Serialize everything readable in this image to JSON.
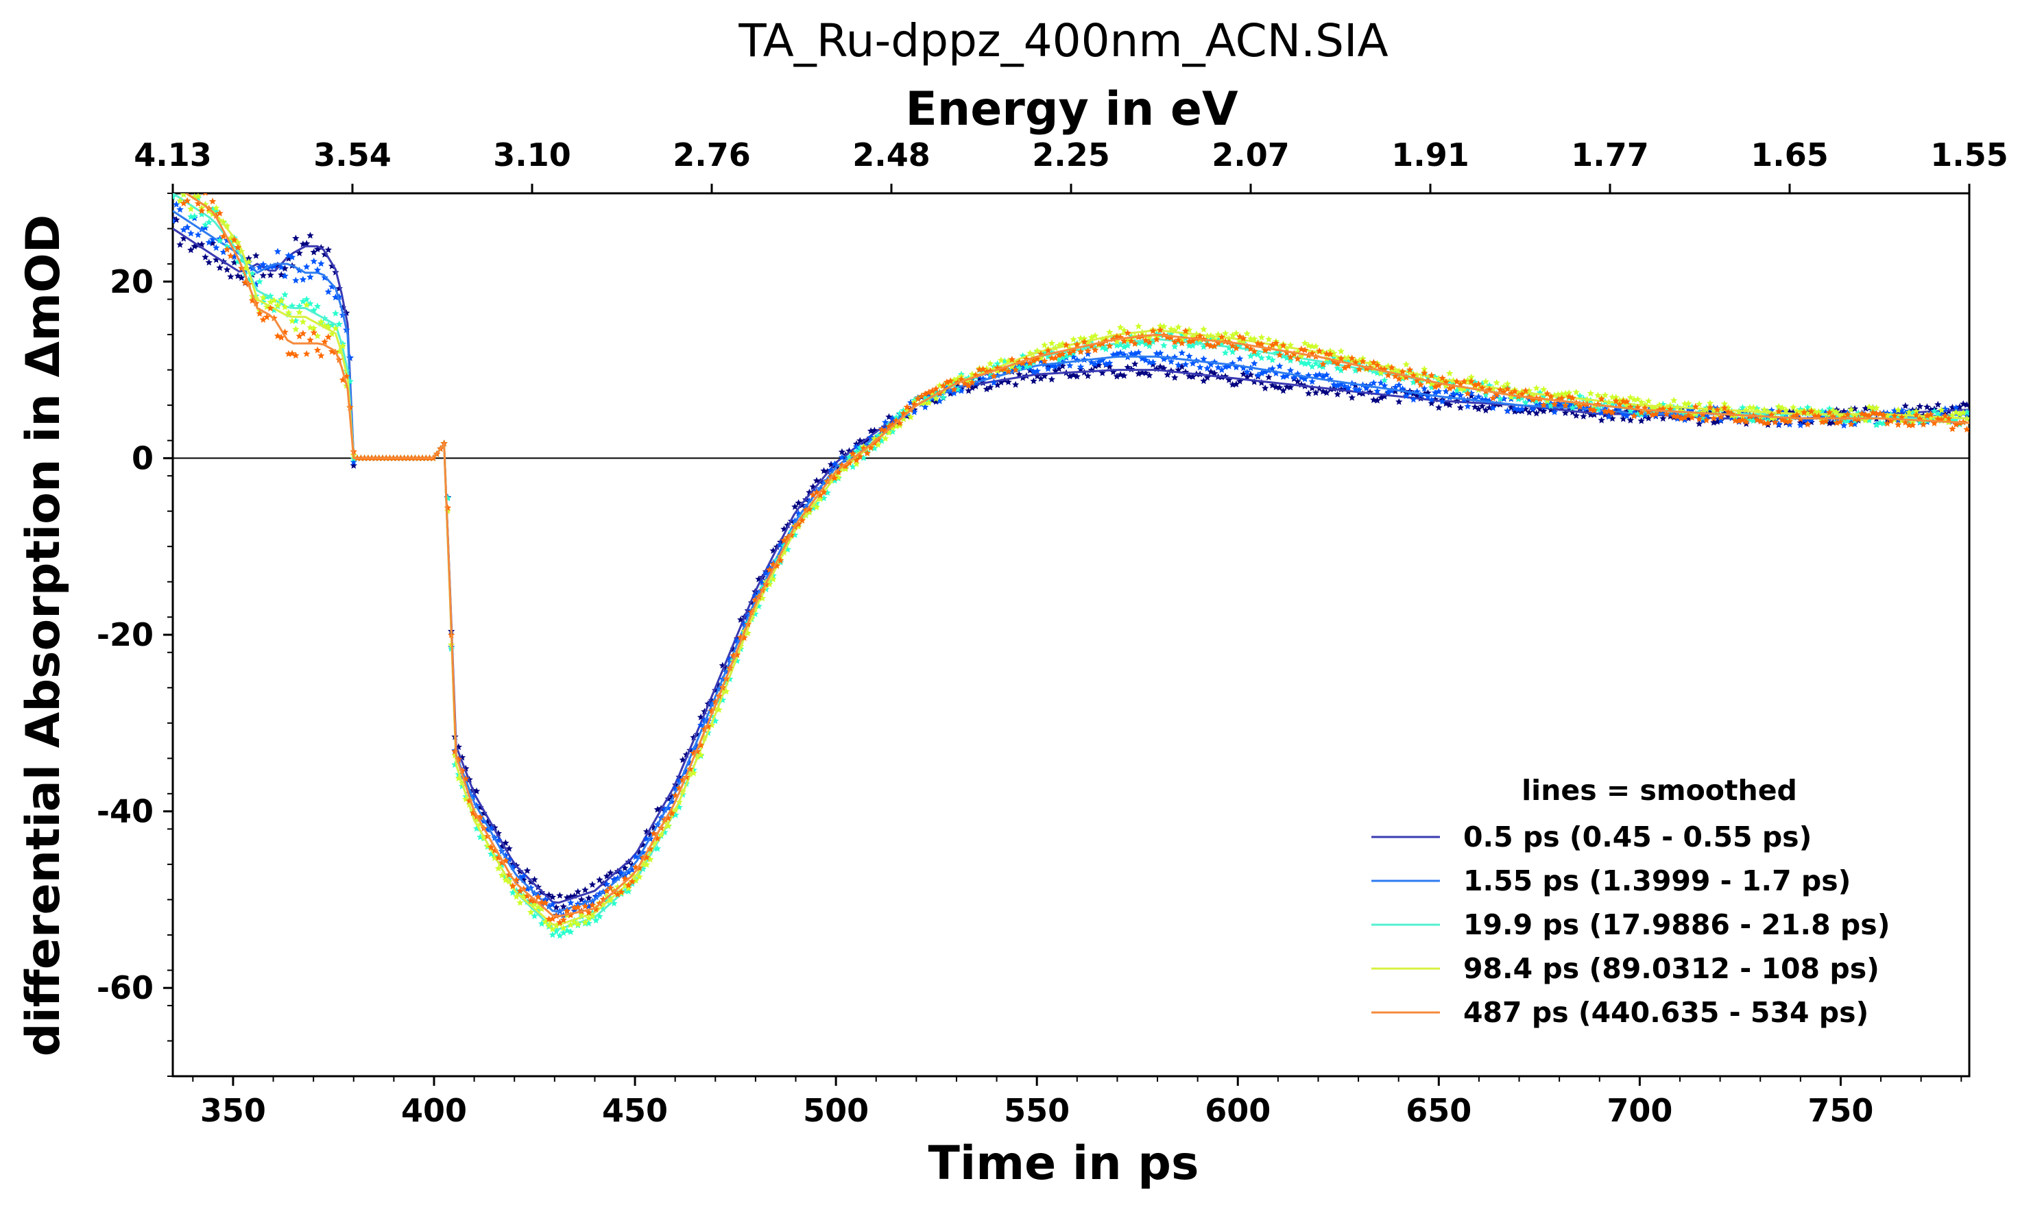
{
  "chart_data": {
    "type": "line",
    "title": "TA_Ru-dppz_400nm_ACN.SIA",
    "xlabel": "Time in ps",
    "ylabel": "differential Absorption in ΔmOD",
    "top_xlabel": "Energy in eV",
    "xlim": [
      335,
      782
    ],
    "ylim": [
      -70,
      30
    ],
    "x_ticks": [
      350,
      400,
      450,
      500,
      550,
      600,
      650,
      700,
      750
    ],
    "y_ticks": [
      20,
      0,
      -20,
      -40,
      -60
    ],
    "y_tick_labels": [
      "20",
      "0",
      "-20",
      "-40",
      "-60"
    ],
    "top_ticks": [
      {
        "x": 300,
        "label": "4.13"
      },
      {
        "x": 350,
        "label": "3.54"
      },
      {
        "x": 400,
        "label": "3.10"
      },
      {
        "x": 450,
        "label": "2.76"
      },
      {
        "x": 500,
        "label": "2.48"
      },
      {
        "x": 550,
        "label": "2.25"
      },
      {
        "x": 600,
        "label": "2.07"
      },
      {
        "x": 650,
        "label": "1.91"
      },
      {
        "x": 700,
        "label": "1.77"
      },
      {
        "x": 750,
        "label": "1.65"
      },
      {
        "x": 800,
        "label": "1.55"
      }
    ],
    "grid": false,
    "zero_line": true,
    "legend": {
      "title": "lines = smoothed",
      "position": "lower-right"
    },
    "series": [
      {
        "name": "0.5 ps (0.45 - 0.55 ps)",
        "color": "#00007f",
        "line_color": "#3a3ab3",
        "x": [
          335,
          345,
          352,
          356,
          360,
          364,
          368,
          372,
          376,
          379,
          380,
          390,
          400,
          403,
          405,
          410,
          420,
          430,
          440,
          450,
          460,
          470,
          480,
          490,
          500,
          510,
          520,
          530,
          550,
          570,
          580,
          590,
          600,
          620,
          650,
          670,
          690,
          700,
          720,
          740,
          760,
          782
        ],
        "y": [
          26,
          23,
          21,
          22,
          21,
          23,
          24,
          24,
          21,
          14,
          0,
          0,
          0,
          2,
          -32,
          -38,
          -46,
          -50.5,
          -49,
          -45,
          -37,
          -26,
          -15,
          -6,
          -0.5,
          3,
          6,
          8,
          9.5,
          10,
          10,
          9.5,
          9,
          8,
          6.5,
          6,
          5,
          5,
          4.5,
          4.5,
          5,
          5.5
        ]
      },
      {
        "name": "1.55 ps (1.3999 - 1.7 ps)",
        "color": "#0055ff",
        "line_color": "#2d7bf0",
        "x": [
          335,
          345,
          352,
          356,
          360,
          364,
          368,
          372,
          376,
          379,
          380,
          390,
          400,
          403,
          405,
          410,
          420,
          430,
          440,
          450,
          460,
          470,
          480,
          490,
          500,
          510,
          520,
          530,
          550,
          570,
          580,
          590,
          600,
          620,
          650,
          670,
          690,
          700,
          720,
          740,
          760,
          782
        ],
        "y": [
          28,
          25,
          23,
          21,
          22,
          22,
          21,
          21,
          19,
          13,
          0,
          0,
          0,
          2,
          -33,
          -39,
          -47,
          -51.5,
          -50,
          -46,
          -38,
          -27,
          -16,
          -7,
          -1,
          2.5,
          6,
          8,
          10.5,
          11.5,
          11.5,
          11,
          10.5,
          9,
          7,
          6,
          5.5,
          5,
          5,
          4.5,
          4.5,
          5
        ]
      },
      {
        "name": "19.9 ps (17.9886 - 21.8 ps)",
        "color": "#29ffce",
        "line_color": "#52f0d0",
        "x": [
          335,
          345,
          352,
          356,
          360,
          364,
          368,
          372,
          376,
          379,
          380,
          390,
          400,
          403,
          405,
          410,
          420,
          430,
          440,
          450,
          460,
          470,
          480,
          490,
          500,
          510,
          520,
          530,
          550,
          570,
          580,
          590,
          600,
          620,
          650,
          670,
          690,
          700,
          720,
          740,
          760,
          782
        ],
        "y": [
          30,
          27,
          23,
          19,
          18,
          17,
          17,
          16,
          15,
          9,
          0,
          0,
          0,
          2,
          -34,
          -41,
          -49,
          -53.5,
          -52,
          -48,
          -40,
          -29,
          -17,
          -8,
          -2,
          2,
          6,
          8.5,
          11.5,
          13,
          13.5,
          13,
          12.5,
          11,
          8.5,
          7,
          6,
          5.5,
          5,
          5,
          4.5,
          4.5
        ]
      },
      {
        "name": "98.4 ps (89.0312 - 108 ps)",
        "color": "#ceff29",
        "line_color": "#d8f040",
        "x": [
          335,
          345,
          352,
          356,
          360,
          364,
          368,
          372,
          376,
          379,
          380,
          390,
          400,
          403,
          405,
          410,
          420,
          430,
          440,
          450,
          460,
          470,
          480,
          490,
          500,
          510,
          520,
          530,
          550,
          570,
          580,
          590,
          600,
          620,
          650,
          670,
          690,
          700,
          720,
          740,
          760,
          782
        ],
        "y": [
          31,
          28,
          24,
          18,
          17,
          16,
          16,
          15,
          14,
          8,
          0,
          0,
          0,
          2,
          -34,
          -41,
          -49,
          -53,
          -51.5,
          -47.5,
          -40,
          -29,
          -17,
          -8,
          -2,
          2,
          6,
          8.5,
          12,
          14,
          14.5,
          14,
          13.5,
          12,
          9,
          7.5,
          6.5,
          6,
          5.5,
          5,
          5,
          4.5
        ]
      },
      {
        "name": "487 ps (440.635 - 534 ps)",
        "color": "#ff6a00",
        "line_color": "#f58a3c",
        "x": [
          335,
          345,
          352,
          356,
          360,
          364,
          368,
          372,
          376,
          379,
          380,
          390,
          400,
          403,
          405,
          410,
          420,
          430,
          440,
          450,
          460,
          470,
          480,
          490,
          500,
          510,
          520,
          530,
          550,
          570,
          580,
          590,
          600,
          620,
          650,
          670,
          690,
          700,
          720,
          740,
          760,
          782
        ],
        "y": [
          31,
          28,
          22,
          17,
          16,
          13,
          13,
          13,
          12,
          7,
          0,
          0,
          0,
          2,
          -33,
          -40,
          -48,
          -52,
          -51,
          -47,
          -39,
          -28,
          -16.5,
          -7.5,
          -1.5,
          2,
          6,
          8.5,
          11.5,
          13.5,
          14,
          13.5,
          13,
          11.5,
          8.5,
          7,
          6,
          5.5,
          5,
          4.5,
          4.5,
          4
        ]
      }
    ]
  }
}
